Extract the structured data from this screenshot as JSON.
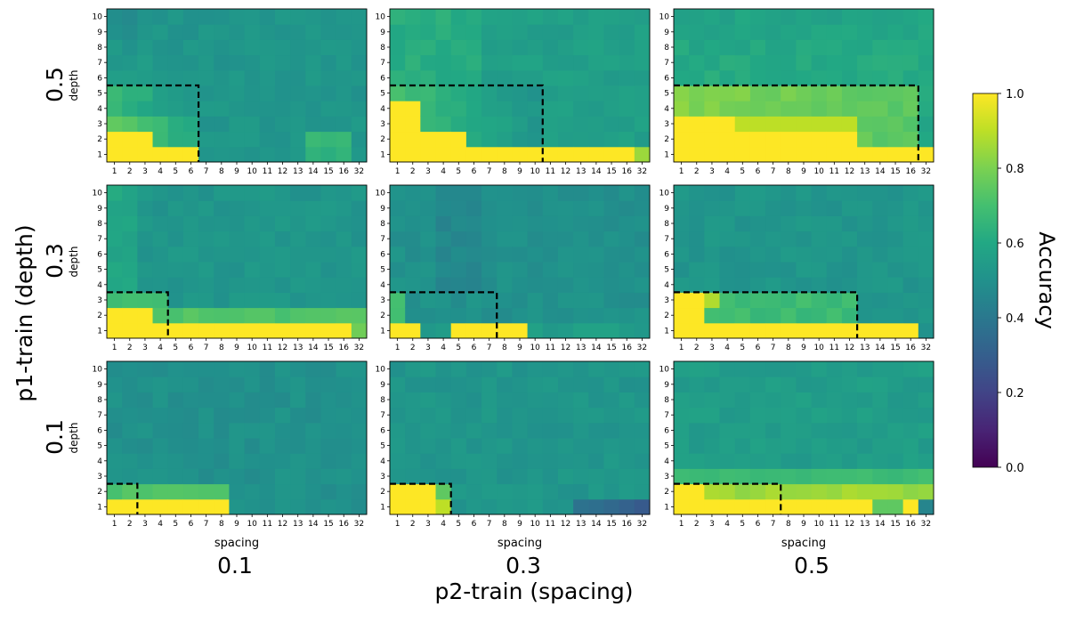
{
  "chart_data": {
    "type": "heatmap",
    "title": "",
    "colormap": "viridis",
    "x_ticks": [
      "1",
      "2",
      "3",
      "4",
      "5",
      "6",
      "7",
      "8",
      "9",
      "10",
      "11",
      "12",
      "13",
      "14",
      "15",
      "16",
      "32"
    ],
    "y_ticks": [
      "1",
      "2",
      "3",
      "4",
      "5",
      "6",
      "7",
      "8",
      "9",
      "10"
    ],
    "panel_xlabel": "spacing",
    "panel_ylabel": "depth",
    "row_titles": [
      "0.5",
      "0.3",
      "0.1"
    ],
    "col_titles": [
      "0.1",
      "0.3",
      "0.5"
    ],
    "supxlabel": "p2-train (spacing)",
    "supylabel": "p1-train (depth)",
    "colorbar": {
      "label": "Accuracy",
      "range": [
        0.0,
        1.0
      ],
      "ticks": [
        "0.0",
        "0.2",
        "0.4",
        "0.6",
        "0.8",
        "1.0"
      ]
    },
    "panels": [
      {
        "p1_train": "0.5",
        "p2_train": "0.1",
        "train_max_spacing": 6,
        "train_max_depth": 5
      },
      {
        "p1_train": "0.5",
        "p2_train": "0.3",
        "train_max_spacing": 10,
        "train_max_depth": 5
      },
      {
        "p1_train": "0.5",
        "p2_train": "0.5",
        "train_max_spacing": 16,
        "train_max_depth": 5
      },
      {
        "p1_train": "0.3",
        "p2_train": "0.1",
        "train_max_spacing": 4,
        "train_max_depth": 3
      },
      {
        "p1_train": "0.3",
        "p2_train": "0.3",
        "train_max_spacing": 7,
        "train_max_depth": 3
      },
      {
        "p1_train": "0.3",
        "p2_train": "0.5",
        "train_max_spacing": 12,
        "train_max_depth": 3
      },
      {
        "p1_train": "0.1",
        "p2_train": "0.1",
        "train_max_spacing": 2,
        "train_max_depth": 2
      },
      {
        "p1_train": "0.1",
        "p2_train": "0.3",
        "train_max_spacing": 4,
        "train_max_depth": 2
      },
      {
        "p1_train": "0.1",
        "p2_train": "0.5",
        "train_max_spacing": 7,
        "train_max_depth": 2
      }
    ]
  }
}
